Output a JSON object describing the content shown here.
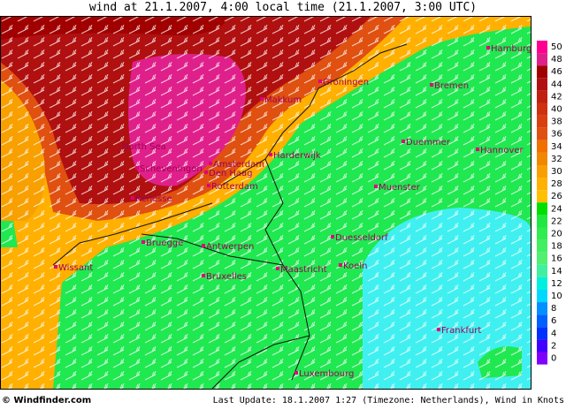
{
  "title": "wind at 21.1.2007, 4:00 local time (21.1.2007, 3:00 UTC)",
  "places": [
    "Hamburg",
    "Bremen",
    "Groningen",
    "Makkum",
    "North Sea",
    "Duemmer",
    "Hannover",
    "Harderwijk",
    "Scheveningen",
    "Amsterdam",
    "Den Haag",
    "Rotterdam",
    "Muenster",
    "Renesse",
    "Duesseldorf",
    "Bruegge",
    "Antwerpen",
    "Wissant",
    "Koeln",
    "Maastricht",
    "Bruxelles",
    "Frankfurt",
    "Luxembourg"
  ],
  "scale": {
    "ticks": [
      50,
      48,
      46,
      44,
      42,
      40,
      38,
      36,
      34,
      32,
      30,
      28,
      26,
      24,
      22,
      20,
      18,
      16,
      14,
      12,
      10,
      8,
      6,
      4,
      2,
      0
    ],
    "colors": [
      "#ff0090",
      "#e0208a",
      "#a00000",
      "#b01010",
      "#c02010",
      "#d03010",
      "#d84010",
      "#e05010",
      "#f07000",
      "#f08800",
      "#f8a000",
      "#ffb000",
      "#ffc000",
      "#00e000",
      "#20e840",
      "#30ec50",
      "#40f060",
      "#50f070",
      "#40f0a0",
      "#00f0e0",
      "#00d8ff",
      "#0090ff",
      "#0060ff",
      "#0030ff",
      "#4000ff",
      "#8000ff"
    ]
  },
  "footer": {
    "brand": "© Windfinder.com",
    "update": "Last Update: 18.1.2007 1:27 (Timezone: Netherlands), Wind in Knots"
  }
}
